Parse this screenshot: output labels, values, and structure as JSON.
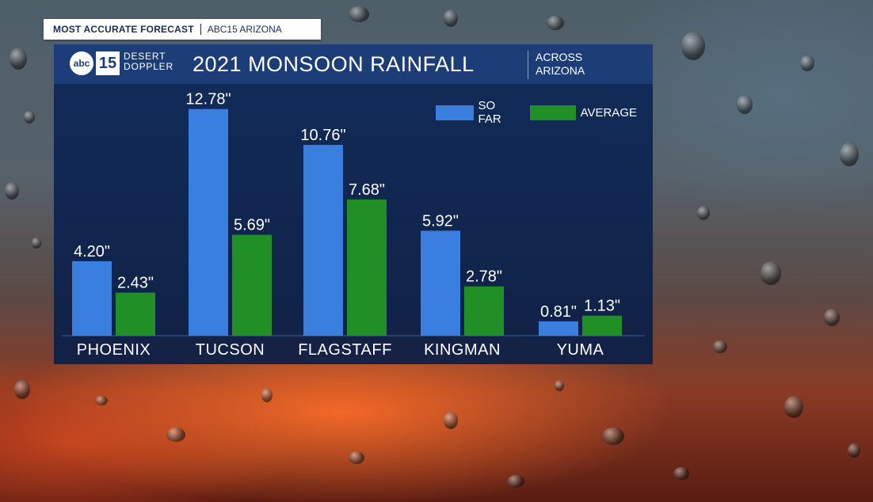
{
  "broadcast": {
    "banner_main": "MOST ACCURATE FORECAST",
    "banner_station": "ABC15 ARIZONA",
    "logo_abc": "abc",
    "logo_number": "15",
    "logo_line1": "DESERT",
    "logo_line2": "DOPPLER",
    "subtitle_line1": "ACROSS",
    "subtitle_line2": "ARIZONA"
  },
  "colors": {
    "so_far": "#3a7fe0",
    "average": "#1f8f26",
    "panel": "#0e2858",
    "header": "#1d3d78"
  },
  "chart_data": {
    "type": "bar",
    "title": "2021 MONSOON RAINFALL",
    "categories": [
      "PHOENIX",
      "TUCSON",
      "FLAGSTAFF",
      "KINGMAN",
      "YUMA"
    ],
    "series": [
      {
        "name": "SO FAR",
        "values": [
          4.2,
          12.78,
          10.76,
          5.92,
          0.81
        ],
        "labels": [
          "4.20\"",
          "12.78\"",
          "10.76\"",
          "5.92\"",
          "0.81\""
        ]
      },
      {
        "name": "AVERAGE",
        "values": [
          2.43,
          5.69,
          7.68,
          2.78,
          1.13
        ],
        "labels": [
          "2.43\"",
          "5.69\"",
          "7.68\"",
          "2.78\"",
          "1.13\""
        ]
      }
    ],
    "legend_position": "top-right",
    "grid": false
  }
}
